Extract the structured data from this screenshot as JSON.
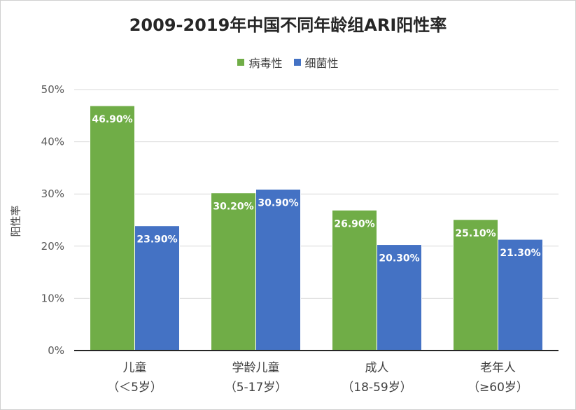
{
  "chart_data": {
    "type": "bar",
    "title": "2009-2019年中国不同年龄组ARI阳性率",
    "ylabel": "阳性率",
    "xlabel": "",
    "categories": [
      {
        "line1": "儿童",
        "line2": "（＜5岁）"
      },
      {
        "line1": "学龄儿童",
        "line2": "（5-17岁）"
      },
      {
        "line1": "成人",
        "line2": "（18-59岁）"
      },
      {
        "line1": "老年人",
        "line2": "（≥60岁）"
      }
    ],
    "series": [
      {
        "name": "病毒性",
        "color": "#70ad47",
        "values": [
          46.9,
          30.2,
          26.9,
          25.1
        ],
        "labels": [
          "46.90%",
          "30.20%",
          "26.90%",
          "25.10%"
        ]
      },
      {
        "name": "细菌性",
        "color": "#4472c4",
        "values": [
          23.9,
          30.9,
          20.3,
          21.3
        ],
        "labels": [
          "23.90%",
          "30.90%",
          "20.30%",
          "21.30%"
        ]
      }
    ],
    "ylim": [
      0,
      50
    ],
    "yticks": [
      {
        "value": 0,
        "label": "0%"
      },
      {
        "value": 10,
        "label": "10%"
      },
      {
        "value": 20,
        "label": "20%"
      },
      {
        "value": 30,
        "label": "30%"
      },
      {
        "value": 40,
        "label": "40%"
      },
      {
        "value": 50,
        "label": "50%"
      }
    ],
    "grid": true,
    "legend_position": "top"
  }
}
